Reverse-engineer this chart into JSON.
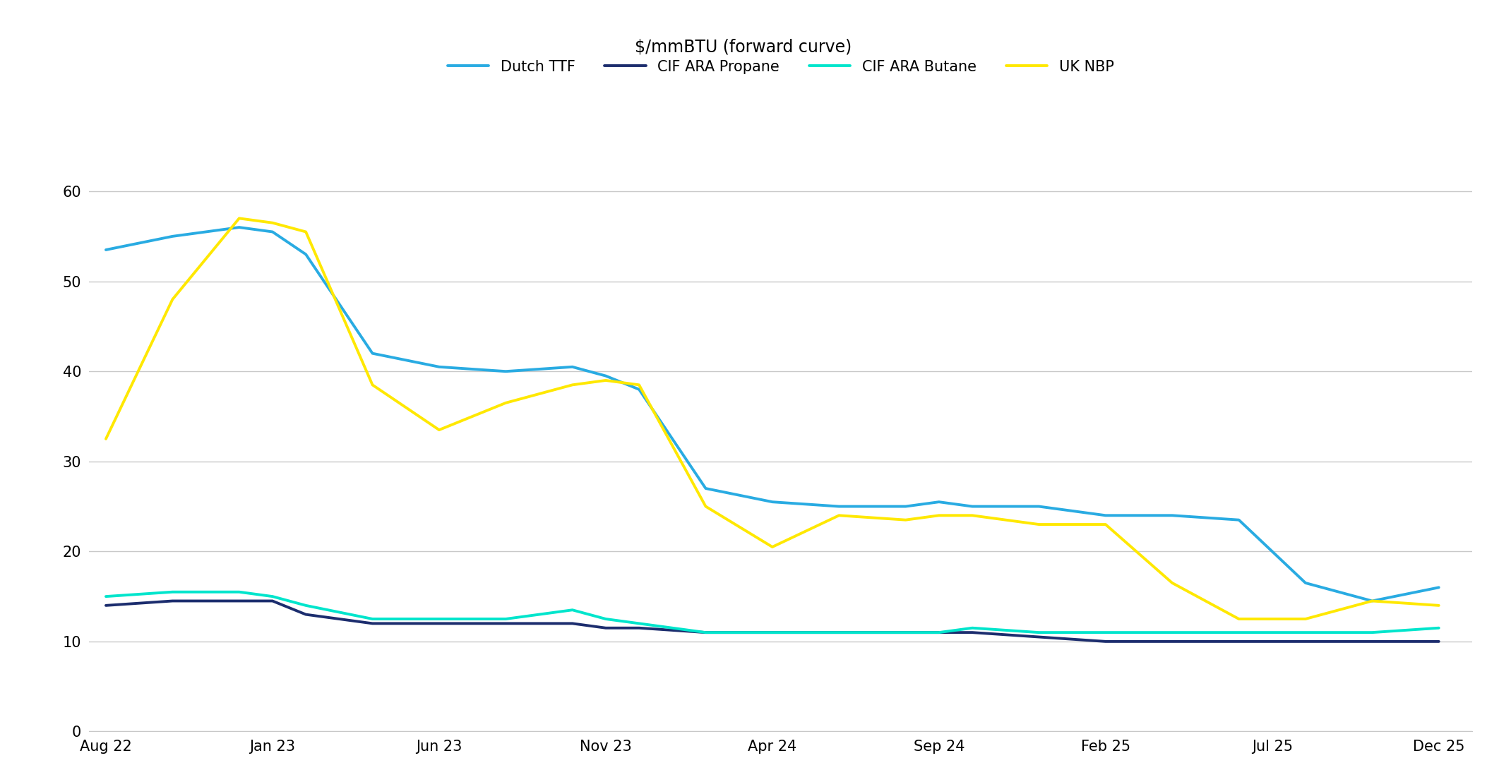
{
  "title": "$/mmBTU (forward curve)",
  "legend_entries": [
    "Dutch TTF",
    "CIF ARA Propane",
    "CIF ARA Butane",
    "UK NBP"
  ],
  "colors": {
    "Dutch TTF": "#29ABE2",
    "CIF ARA Propane": "#1C2D6E",
    "CIF ARA Butane": "#00E5CC",
    "UK NBP": "#FFE800"
  },
  "line_widths": {
    "Dutch TTF": 2.8,
    "CIF ARA Propane": 2.8,
    "CIF ARA Butane": 2.8,
    "UK NBP": 2.8
  },
  "x_labels": [
    "Aug 22",
    "Jan 23",
    "Jun 23",
    "Nov 23",
    "Apr 24",
    "Sep 24",
    "Feb 25",
    "Jul 25",
    "Dec 25"
  ],
  "x_positions": [
    0,
    5,
    10,
    15,
    20,
    25,
    30,
    35,
    40
  ],
  "ylim": [
    0,
    65
  ],
  "yticks": [
    0,
    10,
    20,
    30,
    40,
    50,
    60
  ],
  "series": {
    "Dutch TTF": {
      "x": [
        0,
        2,
        4,
        5,
        6,
        8,
        10,
        12,
        14,
        15,
        16,
        18,
        20,
        22,
        24,
        25,
        26,
        28,
        30,
        32,
        34,
        36,
        38,
        40
      ],
      "y": [
        53.5,
        55.0,
        56.0,
        55.5,
        53.0,
        42.0,
        40.5,
        40.0,
        40.5,
        39.5,
        38.0,
        27.0,
        25.5,
        25.0,
        25.0,
        25.5,
        25.0,
        25.0,
        24.0,
        24.0,
        23.5,
        16.5,
        14.5,
        16.0
      ]
    },
    "CIF ARA Propane": {
      "x": [
        0,
        2,
        4,
        5,
        6,
        8,
        10,
        12,
        14,
        15,
        16,
        18,
        20,
        22,
        24,
        25,
        26,
        28,
        30,
        32,
        34,
        36,
        38,
        40
      ],
      "y": [
        14.0,
        14.5,
        14.5,
        14.5,
        13.0,
        12.0,
        12.0,
        12.0,
        12.0,
        11.5,
        11.5,
        11.0,
        11.0,
        11.0,
        11.0,
        11.0,
        11.0,
        10.5,
        10.0,
        10.0,
        10.0,
        10.0,
        10.0,
        10.0
      ]
    },
    "CIF ARA Butane": {
      "x": [
        0,
        2,
        4,
        5,
        6,
        8,
        10,
        12,
        14,
        15,
        16,
        18,
        20,
        22,
        24,
        25,
        26,
        28,
        30,
        32,
        34,
        36,
        38,
        40
      ],
      "y": [
        15.0,
        15.5,
        15.5,
        15.0,
        14.0,
        12.5,
        12.5,
        12.5,
        13.5,
        12.5,
        12.0,
        11.0,
        11.0,
        11.0,
        11.0,
        11.0,
        11.5,
        11.0,
        11.0,
        11.0,
        11.0,
        11.0,
        11.0,
        11.5
      ]
    },
    "UK NBP": {
      "x": [
        0,
        2,
        4,
        5,
        6,
        8,
        10,
        12,
        14,
        15,
        16,
        18,
        20,
        22,
        24,
        25,
        26,
        28,
        30,
        32,
        34,
        36,
        38,
        40
      ],
      "y": [
        32.5,
        48.0,
        57.0,
        56.5,
        55.5,
        38.5,
        33.5,
        36.5,
        38.5,
        39.0,
        38.5,
        25.0,
        20.5,
        24.0,
        23.5,
        24.0,
        24.0,
        23.0,
        23.0,
        16.5,
        12.5,
        12.5,
        14.5,
        14.0
      ]
    }
  },
  "background_color": "#FFFFFF",
  "grid_color": "#C8C8C8",
  "title_fontsize": 17,
  "legend_fontsize": 15,
  "tick_fontsize": 15
}
